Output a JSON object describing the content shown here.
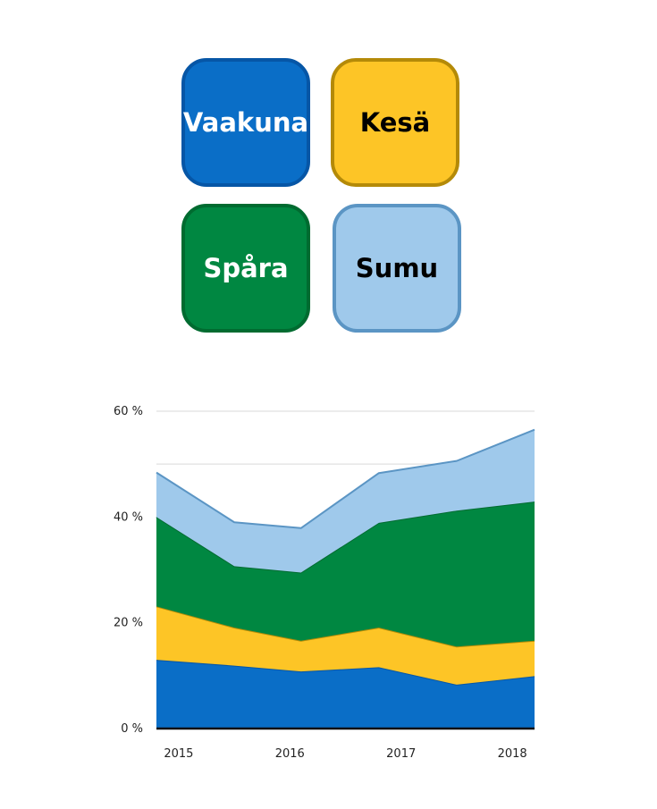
{
  "legend": {
    "items": [
      {
        "label": "Vaakuna",
        "fill": "#0a6ec7",
        "border": "#0656a6",
        "text_color": "#ffffff"
      },
      {
        "label": "Kesä",
        "fill": "#fdc526",
        "border": "#b48a08",
        "text_color": "#000000"
      },
      {
        "label": "Spåra",
        "fill": "#008741",
        "border": "#006b30",
        "text_color": "#ffffff"
      },
      {
        "label": "Sumu",
        "fill": "#9fc9eb",
        "border": "#5b95c4",
        "text_color": "#000000"
      }
    ]
  },
  "chart_data": {
    "type": "area",
    "stacked": true,
    "x": [
      2014.95,
      2015.65,
      2016.25,
      2016.95,
      2017.65,
      2018.35
    ],
    "xlim": [
      2014.95,
      2018.35
    ],
    "x_ticks": [
      {
        "value": 2015.15,
        "label": "2015"
      },
      {
        "value": 2016.15,
        "label": "2016"
      },
      {
        "value": 2017.15,
        "label": "2017"
      },
      {
        "value": 2018.15,
        "label": "2018"
      }
    ],
    "ylim": [
      0,
      60
    ],
    "y_ticks": [
      {
        "value": 0,
        "label": "0 %"
      },
      {
        "value": 20,
        "label": "20 %"
      },
      {
        "value": 40,
        "label": "40 %"
      },
      {
        "value": 60,
        "label": "60 %"
      }
    ],
    "gridlines_at": [
      10,
      30,
      50,
      60
    ],
    "series": [
      {
        "name": "Vaakuna",
        "values": [
          13,
          11.9,
          10.8,
          11.6,
          8.3,
          9.9
        ],
        "fill": "#0a6ec7",
        "stroke": "#0656a6"
      },
      {
        "name": "Kesä",
        "values": [
          10.1,
          7.2,
          5.8,
          7.5,
          7.2,
          6.7
        ],
        "fill": "#fdc526",
        "stroke": "#b48a08"
      },
      {
        "name": "Spåra",
        "values": [
          16.9,
          11.6,
          12.9,
          19.8,
          25.7,
          26.3
        ],
        "fill": "#008741",
        "stroke": "#006b30"
      },
      {
        "name": "Sumu",
        "values": [
          8.4,
          8.3,
          8.4,
          9.4,
          9.4,
          13.6
        ],
        "fill": "#9fc9eb",
        "stroke": "#5b95c4"
      }
    ],
    "grid": true
  }
}
